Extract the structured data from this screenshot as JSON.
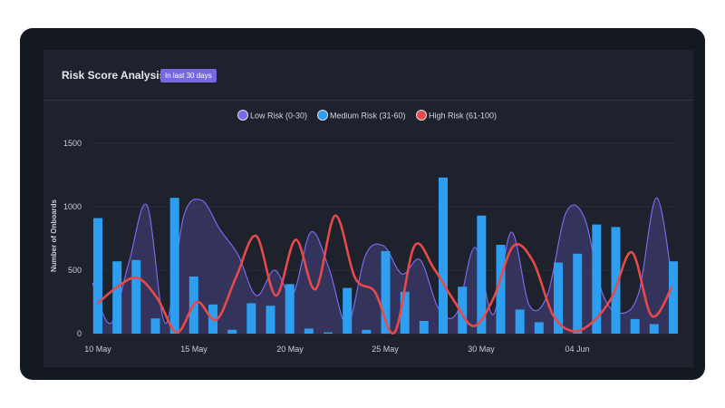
{
  "card": {
    "title": "Risk Score Analysis",
    "badge": "In last 30 days"
  },
  "colors": {
    "low": "#7a6ae8",
    "low_fill": "rgba(98, 86, 190, 0.32)",
    "medium": "#2d9ef0",
    "high": "#e84a4a",
    "badge_bg": "#7767e0"
  },
  "chart_data": {
    "type": "bar",
    "ylabel": "Number of Onboards",
    "xlabel": "",
    "ylim": [
      0,
      1500
    ],
    "yticks": [
      "0",
      "500",
      "1000",
      "1500"
    ],
    "x_tick_labels": [
      "10 May",
      "15 May",
      "20 May",
      "25 May",
      "30 May",
      "04 Jun"
    ],
    "legend_position": "top-center",
    "legend": [
      "Low Risk (0-30)",
      "Medium Risk (31-60)",
      "High Risk (61-100)"
    ],
    "series": [
      {
        "name": "Low Risk (0-30)",
        "kind": "area",
        "values": [
          400,
          80,
          560,
          1010,
          80,
          920,
          1050,
          820,
          620,
          300,
          500,
          310,
          800,
          510,
          70,
          620,
          690,
          470,
          580,
          200,
          160,
          680,
          150,
          800,
          220,
          310,
          950,
          920,
          320,
          160,
          320,
          1070,
          230
        ]
      },
      {
        "name": "Medium Risk (31-60)",
        "kind": "bar",
        "values": [
          910,
          570,
          580,
          120,
          1070,
          450,
          230,
          30,
          240,
          220,
          390,
          40,
          10,
          360,
          30,
          650,
          330,
          100,
          1230,
          370,
          930,
          700,
          190,
          90,
          560,
          630,
          860,
          840,
          115,
          75,
          570
        ]
      },
      {
        "name": "High Risk (61-100)",
        "kind": "line",
        "values": [
          240,
          370,
          440,
          280,
          10,
          250,
          110,
          450,
          770,
          300,
          740,
          350,
          930,
          440,
          330,
          10,
          690,
          510,
          260,
          60,
          280,
          690,
          570,
          150,
          20,
          90,
          290,
          640,
          140,
          360
        ]
      }
    ]
  }
}
